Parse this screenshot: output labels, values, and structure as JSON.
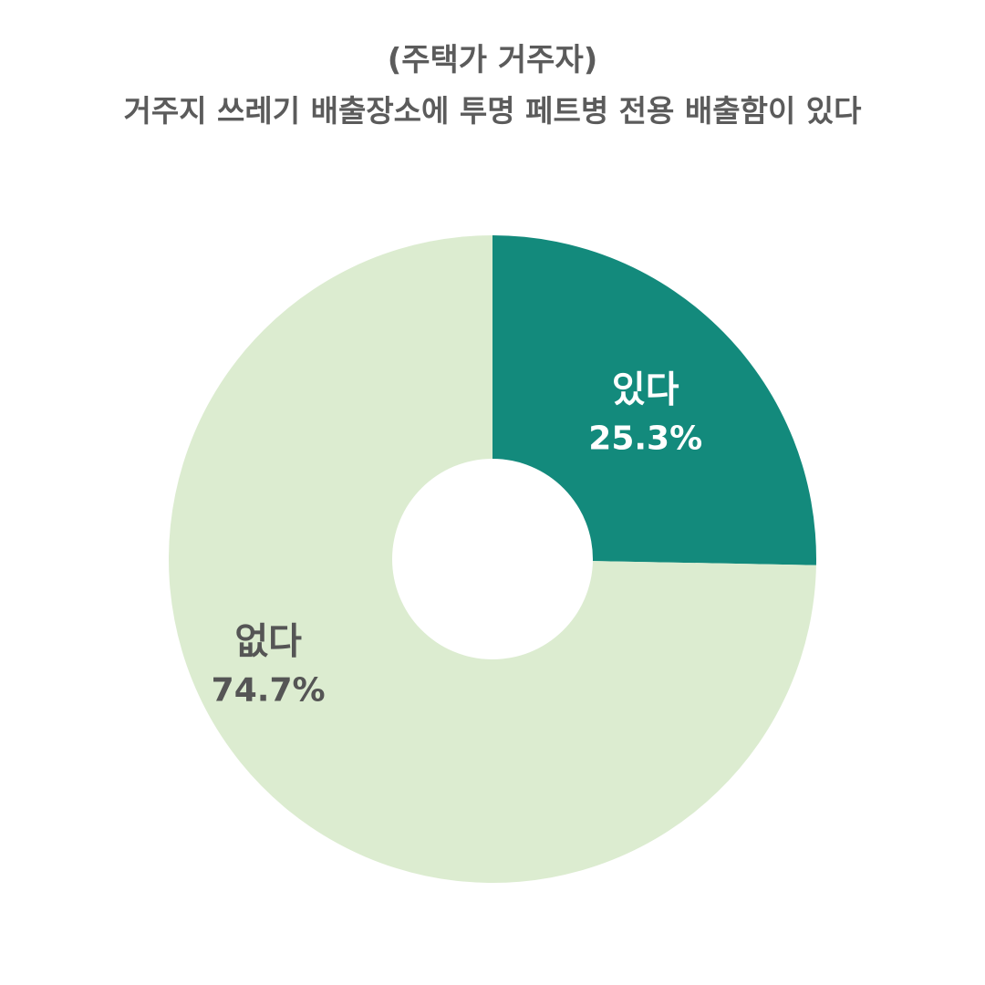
{
  "chart_data": {
    "type": "pie",
    "variant": "donut",
    "title": "(주택가 거주자)",
    "subtitle": "거주지 쓰레기 배출장소에 투명 페트병 전용 배출함이 있다",
    "categories": [
      "있다",
      "없다"
    ],
    "values": [
      25.3,
      74.7
    ],
    "value_labels": [
      "25.3%",
      "74.7%"
    ],
    "colors": [
      "#138a7c",
      "#dcecd0"
    ],
    "label_colors": [
      "#ffffff",
      "#555555"
    ],
    "start": "12 o'clock",
    "direction": "clockwise",
    "legend": "none"
  }
}
